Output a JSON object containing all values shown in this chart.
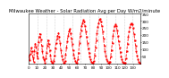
{
  "title": "Milwaukee Weather - Solar Radiation Avg per Day W/m2/minute",
  "line_color": "#ff0000",
  "line_style": "--",
  "line_width": 0.6,
  "marker": "s",
  "marker_size": 1.0,
  "background_color": "#ffffff",
  "grid_color": "#aaaaaa",
  "grid_style": ":",
  "ylim": [
    0,
    350
  ],
  "yticks": [
    50,
    100,
    150,
    200,
    250,
    300,
    350
  ],
  "ylabel_side": "right",
  "values": [
    55,
    25,
    70,
    110,
    85,
    45,
    15,
    90,
    140,
    120,
    75,
    35,
    150,
    190,
    210,
    170,
    125,
    85,
    45,
    28,
    8,
    35,
    75,
    125,
    165,
    135,
    95,
    55,
    18,
    8,
    4,
    18,
    55,
    105,
    145,
    175,
    195,
    215,
    185,
    145,
    95,
    55,
    28,
    8,
    4,
    18,
    65,
    115,
    155,
    195,
    225,
    245,
    215,
    175,
    135,
    95,
    65,
    38,
    18,
    8,
    4,
    28,
    75,
    145,
    195,
    235,
    265,
    285,
    305,
    295,
    265,
    225,
    185,
    145,
    105,
    75,
    48,
    28,
    12,
    8,
    4,
    18,
    55,
    115,
    165,
    215,
    255,
    285,
    305,
    315,
    295,
    265,
    225,
    175,
    125,
    85,
    55,
    32,
    18,
    8,
    4,
    12,
    48,
    95,
    145,
    195,
    235,
    265,
    275,
    265,
    235,
    195,
    155,
    115,
    80,
    52,
    28,
    12,
    4,
    2,
    8,
    38,
    85,
    135,
    185,
    225,
    255,
    275,
    285,
    275,
    250,
    210,
    165,
    125,
    85,
    55,
    32,
    15,
    5,
    2
  ],
  "num_vgrid_lines": 13,
  "tick_label_fontsize": 3.0,
  "title_fontsize": 3.8,
  "xlabel_step": 10
}
